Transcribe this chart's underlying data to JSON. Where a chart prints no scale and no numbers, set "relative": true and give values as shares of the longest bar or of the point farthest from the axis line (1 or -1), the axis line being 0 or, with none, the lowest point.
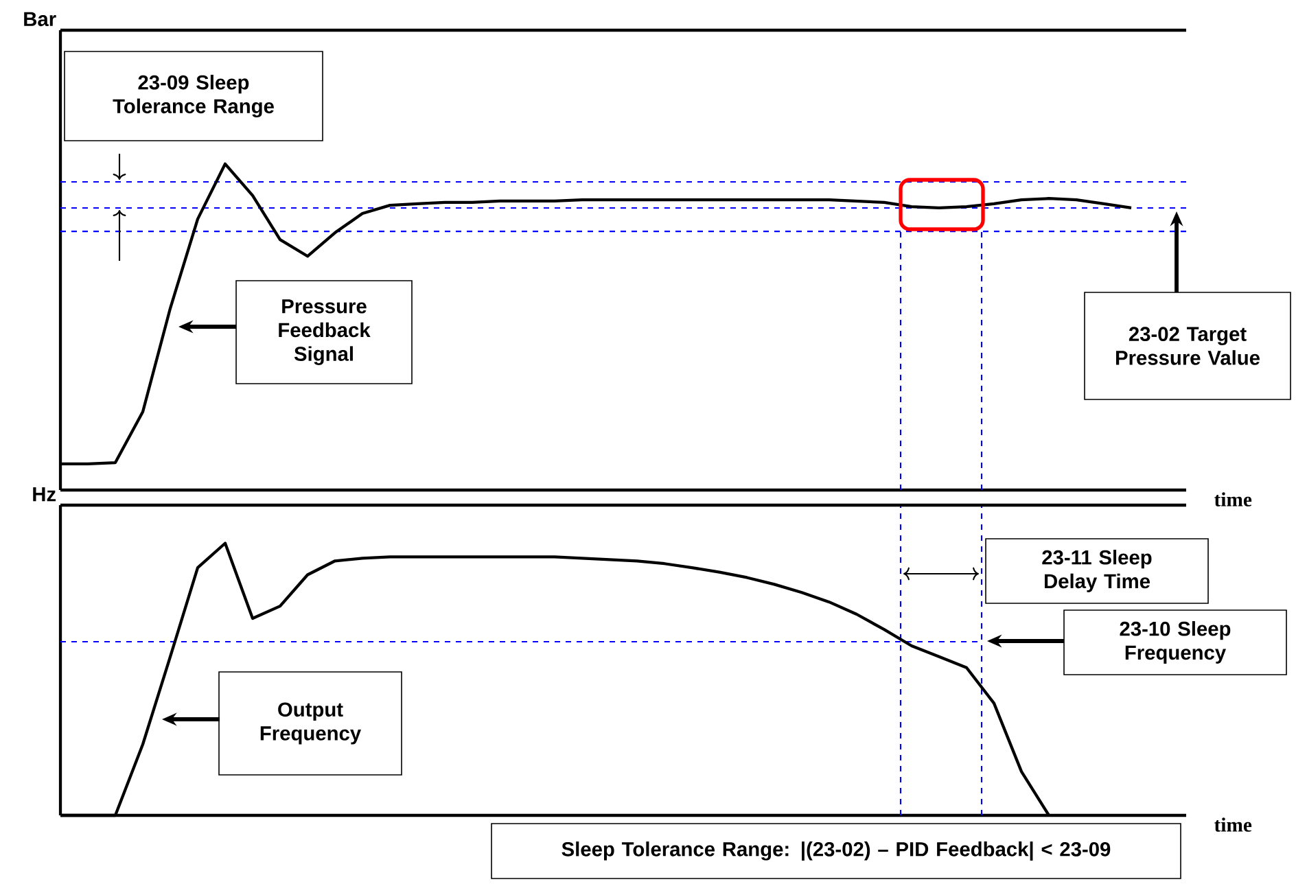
{
  "chart_data": [
    {
      "type": "line",
      "relative": true,
      "ylabel": "Bar",
      "xlabel": "time",
      "categories": [
        null,
        null,
        null,
        null,
        null,
        null,
        null,
        null,
        null,
        null,
        null,
        null,
        null,
        null,
        null,
        null,
        null,
        null,
        null,
        null,
        null,
        null,
        null,
        null,
        null,
        null,
        null,
        null,
        null,
        null,
        null,
        null,
        null,
        null,
        null,
        null,
        null,
        null,
        null,
        null,
        null,
        null
      ],
      "series": [
        {
          "color": "#000000",
          "values": [
            0.08,
            0.08,
            0.084,
            0.24,
            0.557,
            0.831,
            1,
            0.903,
            0.768,
            0.717,
            0.789,
            0.848,
            0.873,
            0.878,
            0.882,
            0.882,
            0.886,
            0.886,
            0.886,
            0.89,
            0.89,
            0.89,
            0.89,
            0.89,
            0.89,
            0.89,
            0.89,
            0.89,
            0.89,
            0.886,
            0.882,
            0.869,
            0.865,
            0.869,
            0.878,
            0.89,
            0.894,
            0.89,
            0.878,
            0.865,
            null,
            null
          ]
        }
      ],
      "ref_lines": [
        {
          "axis": "y",
          "value": 0.945,
          "color": "#0000ff",
          "line_style": "dashed"
        },
        {
          "axis": "y",
          "value": 0.865,
          "color": "#0000ff",
          "line_style": "dashed"
        },
        {
          "axis": "y",
          "value": 0.793,
          "color": "#0000ff",
          "line_style": "dashed"
        }
      ],
      "annotations": [
        "23-09 Sleep Tolerance Range",
        "Pressure Feedback Signal",
        "23-02 Target Pressure Value"
      ]
    },
    {
      "type": "line",
      "relative": true,
      "ylabel": "Hz",
      "xlabel": "time",
      "categories": [
        null,
        null,
        null,
        null,
        null,
        null,
        null,
        null,
        null,
        null,
        null,
        null,
        null,
        null,
        null,
        null,
        null,
        null,
        null,
        null,
        null,
        null,
        null,
        null,
        null,
        null,
        null,
        null,
        null,
        null,
        null,
        null,
        null,
        null,
        null,
        null,
        null,
        null,
        null,
        null,
        null,
        null
      ],
      "series": [
        {
          "color": "#000000",
          "values": [
            0,
            0,
            0,
            0.261,
            0.583,
            0.91,
            1,
            0.724,
            0.769,
            0.884,
            0.935,
            0.945,
            0.95,
            0.95,
            0.95,
            0.95,
            0.95,
            0.95,
            0.95,
            0.945,
            0.94,
            0.935,
            0.925,
            0.91,
            0.894,
            0.874,
            0.849,
            0.819,
            0.784,
            0.739,
            0.683,
            0.623,
            0.583,
            0.543,
            0.412,
            0.161,
            0,
            null,
            null,
            null,
            null,
            null
          ]
        }
      ],
      "ref_lines": [
        {
          "axis": "y",
          "value": 0.638,
          "color": "#0000ff",
          "line_style": "dashed"
        }
      ],
      "annotations": [
        "23-11 Sleep Delay Time",
        "23-10 Sleep Frequency",
        "Output Frequency",
        "Sleep Tolerance Range:  |(23-02) – PID Feedback| < 23-09"
      ]
    }
  ]
}
